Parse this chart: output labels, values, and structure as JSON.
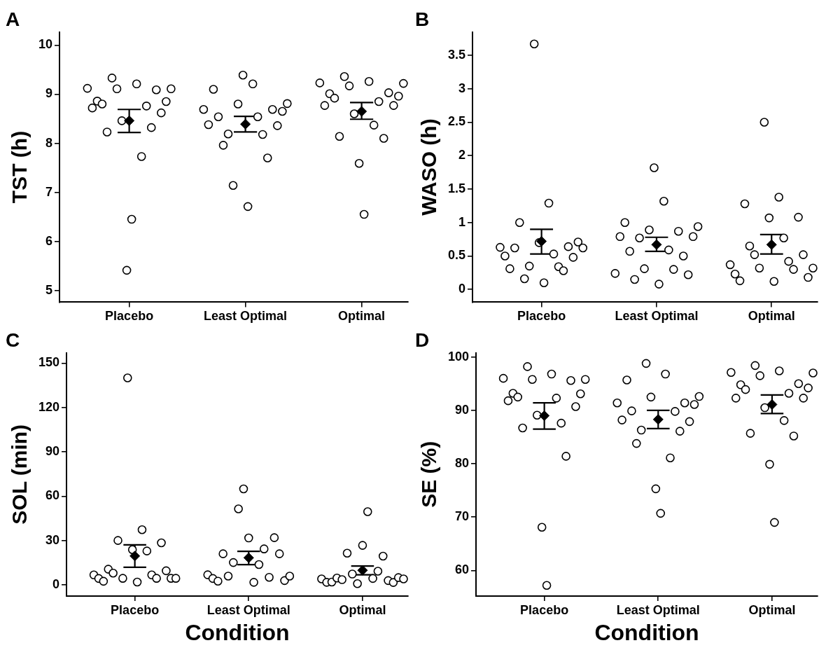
{
  "chart_data": [
    {
      "type": "scatter",
      "title": "A",
      "ylabel": "TST (h)",
      "categories": [
        "Placebo",
        "Least Optimal",
        "Optimal"
      ],
      "ylim": [
        4.76,
        10.27
      ],
      "yticks": [
        5,
        6,
        7,
        8,
        9,
        10
      ],
      "grid": false,
      "legend": false,
      "series": [
        {
          "marker": "diamond",
          "color": "#000000",
          "x": [
            "Placebo",
            "Least Optimal",
            "Optimal"
          ],
          "values": [
            8.46,
            8.39,
            8.65
          ],
          "errors": [
            [
              8.22,
              8.69
            ],
            [
              8.23,
              8.55
            ],
            [
              8.49,
              8.83
            ]
          ]
        },
        {
          "marker": "circle",
          "color": "#000000",
          "x": [
            "Placebo",
            "Placebo",
            "Placebo",
            "Placebo",
            "Placebo",
            "Placebo",
            "Placebo",
            "Placebo",
            "Placebo",
            "Placebo",
            "Placebo",
            "Placebo",
            "Placebo",
            "Placebo",
            "Placebo",
            "Placebo",
            "Placebo",
            "Placebo",
            "Least Optimal",
            "Least Optimal",
            "Least Optimal",
            "Least Optimal",
            "Least Optimal",
            "Least Optimal",
            "Least Optimal",
            "Least Optimal",
            "Least Optimal",
            "Least Optimal",
            "Least Optimal",
            "Least Optimal",
            "Least Optimal",
            "Least Optimal",
            "Least Optimal",
            "Least Optimal",
            "Least Optimal",
            "Least Optimal",
            "Optimal",
            "Optimal",
            "Optimal",
            "Optimal",
            "Optimal",
            "Optimal",
            "Optimal",
            "Optimal",
            "Optimal",
            "Optimal",
            "Optimal",
            "Optimal",
            "Optimal",
            "Optimal",
            "Optimal",
            "Optimal",
            "Optimal",
            "Optimal"
          ],
          "values": [
            9.12,
            8.72,
            8.86,
            8.8,
            8.23,
            9.33,
            9.11,
            8.46,
            5.41,
            6.45,
            9.21,
            7.73,
            8.76,
            8.32,
            9.09,
            8.62,
            8.85,
            9.11,
            8.69,
            8.38,
            9.1,
            8.54,
            7.96,
            8.19,
            7.14,
            8.8,
            9.39,
            6.71,
            9.21,
            8.54,
            8.18,
            7.7,
            8.69,
            8.36,
            8.65,
            8.81,
            9.23,
            8.77,
            9.01,
            8.92,
            8.14,
            9.36,
            9.17,
            8.6,
            7.59,
            6.55,
            9.26,
            8.37,
            8.85,
            8.1,
            9.03,
            8.77,
            8.96,
            9.22
          ]
        }
      ]
    },
    {
      "type": "scatter",
      "title": "B",
      "ylabel": "WASO (h)",
      "categories": [
        "Placebo",
        "Least Optimal",
        "Optimal"
      ],
      "ylim": [
        -0.19,
        3.85
      ],
      "yticks": [
        0,
        0.5,
        1,
        1.5,
        2,
        2.5,
        3,
        3.5
      ],
      "grid": false,
      "legend": false,
      "series": [
        {
          "marker": "diamond",
          "color": "#000000",
          "x": [
            "Placebo",
            "Least Optimal",
            "Optimal"
          ],
          "values": [
            0.72,
            0.67,
            0.67
          ],
          "errors": [
            [
              0.53,
              0.9
            ],
            [
              0.57,
              0.78
            ],
            [
              0.53,
              0.82
            ]
          ]
        },
        {
          "marker": "circle",
          "color": "#000000",
          "x": [
            "Placebo",
            "Placebo",
            "Placebo",
            "Placebo",
            "Placebo",
            "Placebo",
            "Placebo",
            "Placebo",
            "Placebo",
            "Placebo",
            "Placebo",
            "Placebo",
            "Placebo",
            "Placebo",
            "Placebo",
            "Placebo",
            "Placebo",
            "Placebo",
            "Least Optimal",
            "Least Optimal",
            "Least Optimal",
            "Least Optimal",
            "Least Optimal",
            "Least Optimal",
            "Least Optimal",
            "Least Optimal",
            "Least Optimal",
            "Least Optimal",
            "Least Optimal",
            "Least Optimal",
            "Least Optimal",
            "Least Optimal",
            "Least Optimal",
            "Least Optimal",
            "Least Optimal",
            "Least Optimal",
            "Optimal",
            "Optimal",
            "Optimal",
            "Optimal",
            "Optimal",
            "Optimal",
            "Optimal",
            "Optimal",
            "Optimal",
            "Optimal",
            "Optimal",
            "Optimal",
            "Optimal",
            "Optimal",
            "Optimal",
            "Optimal",
            "Optimal",
            "Optimal"
          ],
          "values": [
            0.63,
            0.5,
            0.31,
            0.62,
            1.0,
            0.16,
            0.35,
            3.67,
            0.7,
            0.1,
            1.29,
            0.53,
            0.34,
            0.28,
            0.64,
            0.48,
            0.71,
            0.62,
            0.24,
            0.79,
            1.0,
            0.57,
            0.15,
            0.77,
            0.31,
            0.89,
            1.82,
            0.08,
            1.32,
            0.59,
            0.3,
            0.87,
            0.5,
            0.22,
            0.79,
            0.94,
            0.37,
            0.23,
            0.13,
            1.28,
            0.65,
            0.52,
            0.32,
            2.5,
            1.07,
            0.12,
            1.38,
            0.77,
            0.42,
            0.3,
            1.08,
            0.52,
            0.18,
            0.32
          ]
        }
      ]
    },
    {
      "type": "scatter",
      "title": "C",
      "ylabel": "SOL (min)",
      "xlabel": "Condition",
      "categories": [
        "Placebo",
        "Least Optimal",
        "Optimal"
      ],
      "ylim": [
        -7.6,
        157
      ],
      "yticks": [
        0,
        30,
        60,
        90,
        120,
        150
      ],
      "grid": false,
      "legend": false,
      "series": [
        {
          "marker": "diamond",
          "color": "#000000",
          "x": [
            "Placebo",
            "Least Optimal",
            "Optimal"
          ],
          "values": [
            19.5,
            18.3,
            9.8
          ],
          "errors": [
            [
              11.9,
              27
            ],
            [
              13.7,
              22.7
            ],
            [
              6.8,
              12.7
            ]
          ]
        },
        {
          "marker": "circle",
          "color": "#000000",
          "x": [
            "Placebo",
            "Placebo",
            "Placebo",
            "Placebo",
            "Placebo",
            "Placebo",
            "Placebo",
            "Placebo",
            "Placebo",
            "Placebo",
            "Placebo",
            "Placebo",
            "Placebo",
            "Placebo",
            "Placebo",
            "Placebo",
            "Placebo",
            "Placebo",
            "Least Optimal",
            "Least Optimal",
            "Least Optimal",
            "Least Optimal",
            "Least Optimal",
            "Least Optimal",
            "Least Optimal",
            "Least Optimal",
            "Least Optimal",
            "Least Optimal",
            "Least Optimal",
            "Least Optimal",
            "Least Optimal",
            "Least Optimal",
            "Least Optimal",
            "Least Optimal",
            "Least Optimal",
            "Optimal",
            "Optimal",
            "Optimal",
            "Optimal",
            "Optimal",
            "Optimal",
            "Optimal",
            "Optimal",
            "Optimal",
            "Optimal",
            "Optimal",
            "Optimal",
            "Optimal",
            "Optimal",
            "Optimal",
            "Optimal",
            "Optimal"
          ],
          "values": [
            6.7,
            4.3,
            2.4,
            10.6,
            7.9,
            30,
            4.4,
            140,
            23.8,
            1.9,
            37.3,
            22.9,
            6.7,
            4.4,
            28.4,
            9.5,
            4.4,
            4.4,
            6.8,
            4.3,
            2.5,
            21,
            5.9,
            15.1,
            51.4,
            64.9,
            31.7,
            1.7,
            13.7,
            24.3,
            5.1,
            31.9,
            21,
            2.9,
            5.9,
            4,
            1.7,
            1.9,
            4.6,
            3.5,
            21.4,
            7.3,
            0.8,
            26.7,
            49.5,
            4.3,
            9.2,
            19.4,
            2.9,
            1.6,
            4.9,
            4
          ]
        }
      ]
    },
    {
      "type": "scatter",
      "title": "D",
      "ylabel": "SE (%)",
      "xlabel": "Condition",
      "categories": [
        "Placebo",
        "Least Optimal",
        "Optimal"
      ],
      "ylim": [
        55.2,
        100.8
      ],
      "yticks": [
        60,
        70,
        80,
        90,
        100
      ],
      "grid": false,
      "legend": false,
      "series": [
        {
          "marker": "diamond",
          "color": "#000000",
          "x": [
            "Placebo",
            "Least Optimal",
            "Optimal"
          ],
          "values": [
            89,
            88.3,
            91.1
          ],
          "errors": [
            [
              86.5,
              91.4
            ],
            [
              86.6,
              90
            ],
            [
              89.4,
              92.9
            ]
          ]
        },
        {
          "marker": "circle",
          "color": "#000000",
          "x": [
            "Placebo",
            "Placebo",
            "Placebo",
            "Placebo",
            "Placebo",
            "Placebo",
            "Placebo",
            "Placebo",
            "Placebo",
            "Placebo",
            "Placebo",
            "Placebo",
            "Placebo",
            "Placebo",
            "Placebo",
            "Placebo",
            "Placebo",
            "Placebo",
            "Least Optimal",
            "Least Optimal",
            "Least Optimal",
            "Least Optimal",
            "Least Optimal",
            "Least Optimal",
            "Least Optimal",
            "Least Optimal",
            "Least Optimal",
            "Least Optimal",
            "Least Optimal",
            "Least Optimal",
            "Least Optimal",
            "Least Optimal",
            "Least Optimal",
            "Least Optimal",
            "Least Optimal",
            "Least Optimal",
            "Optimal",
            "Optimal",
            "Optimal",
            "Optimal",
            "Optimal",
            "Optimal",
            "Optimal",
            "Optimal",
            "Optimal",
            "Optimal",
            "Optimal",
            "Optimal",
            "Optimal",
            "Optimal",
            "Optimal",
            "Optimal",
            "Optimal",
            "Optimal"
          ],
          "values": [
            96,
            91.8,
            93.2,
            92.5,
            86.7,
            98.2,
            95.8,
            89.1,
            68.1,
            57.2,
            96.8,
            92.3,
            87.6,
            81.4,
            95.6,
            90.7,
            93.1,
            95.8,
            91.4,
            88.2,
            95.7,
            89.9,
            83.8,
            86.3,
            98.8,
            92.5,
            75.3,
            70.7,
            96.8,
            81.1,
            89.8,
            86.1,
            91.4,
            87.9,
            91.1,
            92.6,
            97.1,
            92.3,
            94.8,
            93.9,
            85.7,
            98.4,
            96.5,
            90.5,
            79.9,
            69,
            97.4,
            88.1,
            93.2,
            85.2,
            95,
            92.3,
            94.2,
            97
          ]
        }
      ]
    }
  ]
}
